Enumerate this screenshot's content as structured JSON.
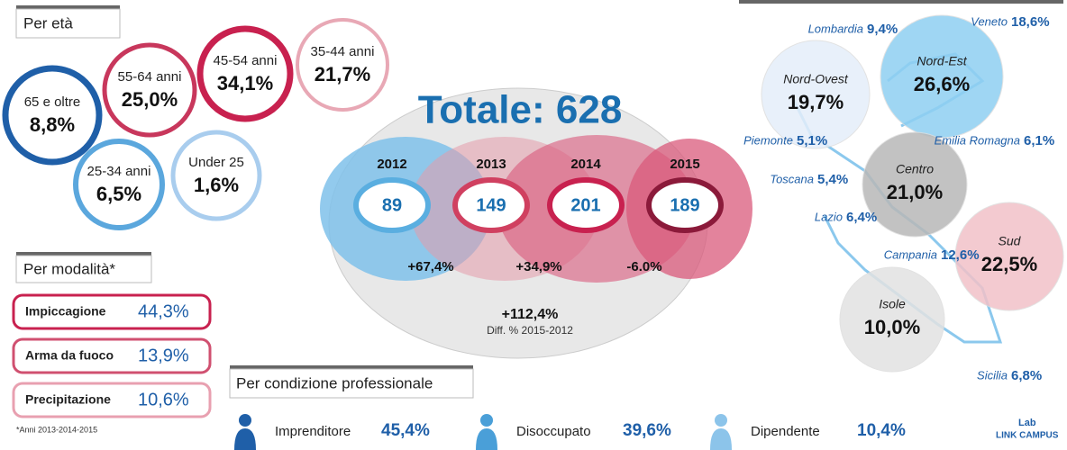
{
  "age": {
    "title": "Per età",
    "items": [
      {
        "label": "65 e oltre",
        "value": "8,8%"
      },
      {
        "label": "55-64 anni",
        "value": "25,0%"
      },
      {
        "label": "45-54 anni",
        "value": "34,1%"
      },
      {
        "label": "35-44 anni",
        "value": "21,7%"
      },
      {
        "label": "25-34 anni",
        "value": "6,5%"
      },
      {
        "label": "Under 25",
        "value": "1,6%"
      }
    ]
  },
  "modality": {
    "title": "Per modalità*",
    "items": [
      {
        "label": "Impiccagione",
        "value": "44,3%"
      },
      {
        "label": "Arma da fuoco",
        "value": "13,9%"
      },
      {
        "label": "Precipitazione",
        "value": "10,6%"
      }
    ],
    "note": "*Anni 2013-2014-2015"
  },
  "total": {
    "title": "Totale: 628",
    "years": [
      {
        "year": "2012",
        "value": "89"
      },
      {
        "year": "2013",
        "value": "149"
      },
      {
        "year": "2014",
        "value": "201"
      },
      {
        "year": "2015",
        "value": "189"
      }
    ],
    "changes": [
      "+67,4%",
      "+34,9%",
      "-6.0%"
    ],
    "overall": "+112,4%",
    "overall_note": "Diff. % 2015-2012"
  },
  "professional": {
    "title": "Per condizione professionale",
    "items": [
      {
        "label": "Imprenditore",
        "value": "45,4%"
      },
      {
        "label": "Disoccupato",
        "value": "39,6%"
      },
      {
        "label": "Dipendente",
        "value": "10,4%"
      }
    ]
  },
  "macro_areas": [
    {
      "label": "Nord-Ovest",
      "value": "19,7%"
    },
    {
      "label": "Nord-Est",
      "value": "26,6%"
    },
    {
      "label": "Centro",
      "value": "21,0%"
    },
    {
      "label": "Sud",
      "value": "22,5%"
    },
    {
      "label": "Isole",
      "value": "10,0%"
    }
  ],
  "regions": [
    {
      "label": "Lombardia",
      "value": "9,4%"
    },
    {
      "label": "Veneto",
      "value": "18,6%"
    },
    {
      "label": "Piemonte",
      "value": "5,1%"
    },
    {
      "label": "Emilia Romagna",
      "value": "6,1%"
    },
    {
      "label": "Toscana",
      "value": "5,4%"
    },
    {
      "label": "Lazio",
      "value": "6,4%"
    },
    {
      "label": "Campania",
      "value": "12,6%"
    },
    {
      "label": "Sicilia",
      "value": "6,8%"
    }
  ],
  "logo": {
    "top": "Lab",
    "bottom": "LINK CAMPUS"
  }
}
